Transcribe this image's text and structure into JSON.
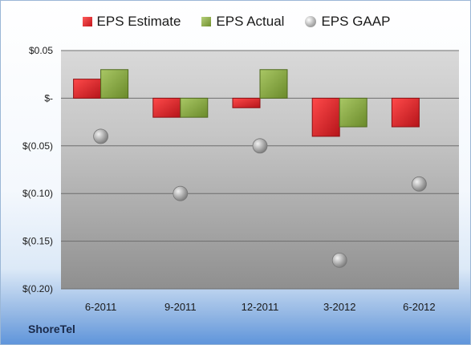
{
  "company": "ShoreTel",
  "legend_labels": [
    "EPS Estimate",
    "EPS Actual",
    "EPS GAAP"
  ],
  "colors": {
    "estimate": "#d3242a",
    "actual": "#8aad46",
    "gaap": "#b5b5b5"
  },
  "chart_data": {
    "type": "bar",
    "title": "",
    "xlabel": "",
    "ylabel": "",
    "categories": [
      "6-2011",
      "9-2011",
      "12-2011",
      "3-2012",
      "6-2012"
    ],
    "ylim": [
      -0.2,
      0.05
    ],
    "yticks": [
      0.05,
      0,
      -0.05,
      -0.1,
      -0.15,
      -0.2
    ],
    "ytick_labels": [
      "$0.05",
      "$-",
      "$(0.05)",
      "$(0.10)",
      "$(0.15)",
      "$(0.20)"
    ],
    "series": [
      {
        "name": "EPS Estimate",
        "kind": "bar",
        "values": [
          0.02,
          -0.02,
          -0.01,
          -0.04,
          -0.03
        ]
      },
      {
        "name": "EPS Actual",
        "kind": "bar",
        "values": [
          0.03,
          -0.02,
          0.03,
          -0.03,
          null
        ]
      },
      {
        "name": "EPS GAAP",
        "kind": "scatter",
        "values": [
          -0.04,
          -0.1,
          -0.05,
          -0.17,
          -0.09
        ]
      }
    ],
    "legend_position": "top",
    "grid": true
  }
}
